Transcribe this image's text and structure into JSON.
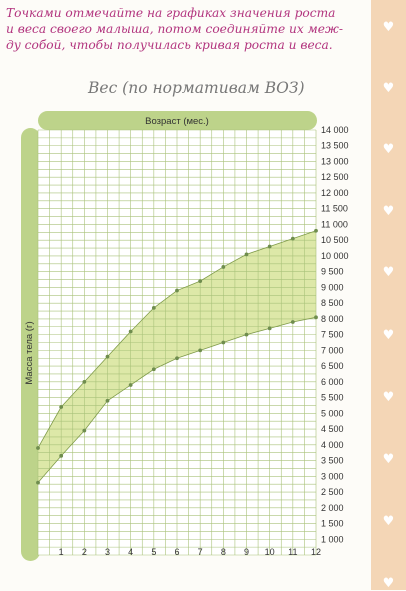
{
  "instructions": {
    "line1": "Точками отмечайте на графиках значения роста",
    "line2": "и веса своего малыша, потом соединяйте их меж-",
    "line3": "ду собой, чтобы получилась кривая роста и веса."
  },
  "colors": {
    "instruction_text": "#b2347e",
    "band_fill": "#dde8a8",
    "band_line": "#7f9b4a",
    "grid": "#a9c27a",
    "axis_bar": "#bdd38a",
    "strip": "#f4d6b6",
    "marker": "#6f8d4e"
  },
  "icons": {
    "strip_heart": "heart-icon"
  },
  "chart_data": {
    "type": "area",
    "title": "Вес (по нормативам ВОЗ)",
    "xlabel": "Возраст (мес.)",
    "ylabel": "Масса тела (г)",
    "x_ticks": [
      "1",
      "2",
      "3",
      "4",
      "5",
      "6",
      "7",
      "8",
      "9",
      "10",
      "11",
      "12"
    ],
    "y_ticks": [
      "14 000",
      "13 500",
      "13 000",
      "12 500",
      "12 000",
      "11 500",
      "11 000",
      "10 500",
      "10 000",
      "9 500",
      "9 000",
      "8 500",
      "8 000",
      "7 500",
      "7 000",
      "6 500",
      "6 000",
      "5 500",
      "5 000",
      "4 500",
      "4 000",
      "3 500",
      "3 000",
      "2 500",
      "2 000",
      "1 500",
      "1 000"
    ],
    "xlim": [
      0,
      12
    ],
    "ylim": [
      500,
      14000
    ],
    "grid": true,
    "series": [
      {
        "name": "",
        "x": [
          0,
          1,
          2,
          3,
          4,
          5,
          6,
          7,
          8,
          9,
          10,
          11,
          12
        ],
        "values": [
          3900,
          5200,
          6000,
          6800,
          7600,
          8350,
          8900,
          9200,
          9650,
          10050,
          10300,
          10550,
          10800
        ]
      },
      {
        "name": "",
        "x": [
          0,
          1,
          2,
          3,
          4,
          5,
          6,
          7,
          8,
          9,
          10,
          11,
          12
        ],
        "values": [
          2800,
          3650,
          4450,
          5400,
          5900,
          6400,
          6750,
          7000,
          7250,
          7500,
          7700,
          7900,
          8050
        ]
      }
    ]
  }
}
